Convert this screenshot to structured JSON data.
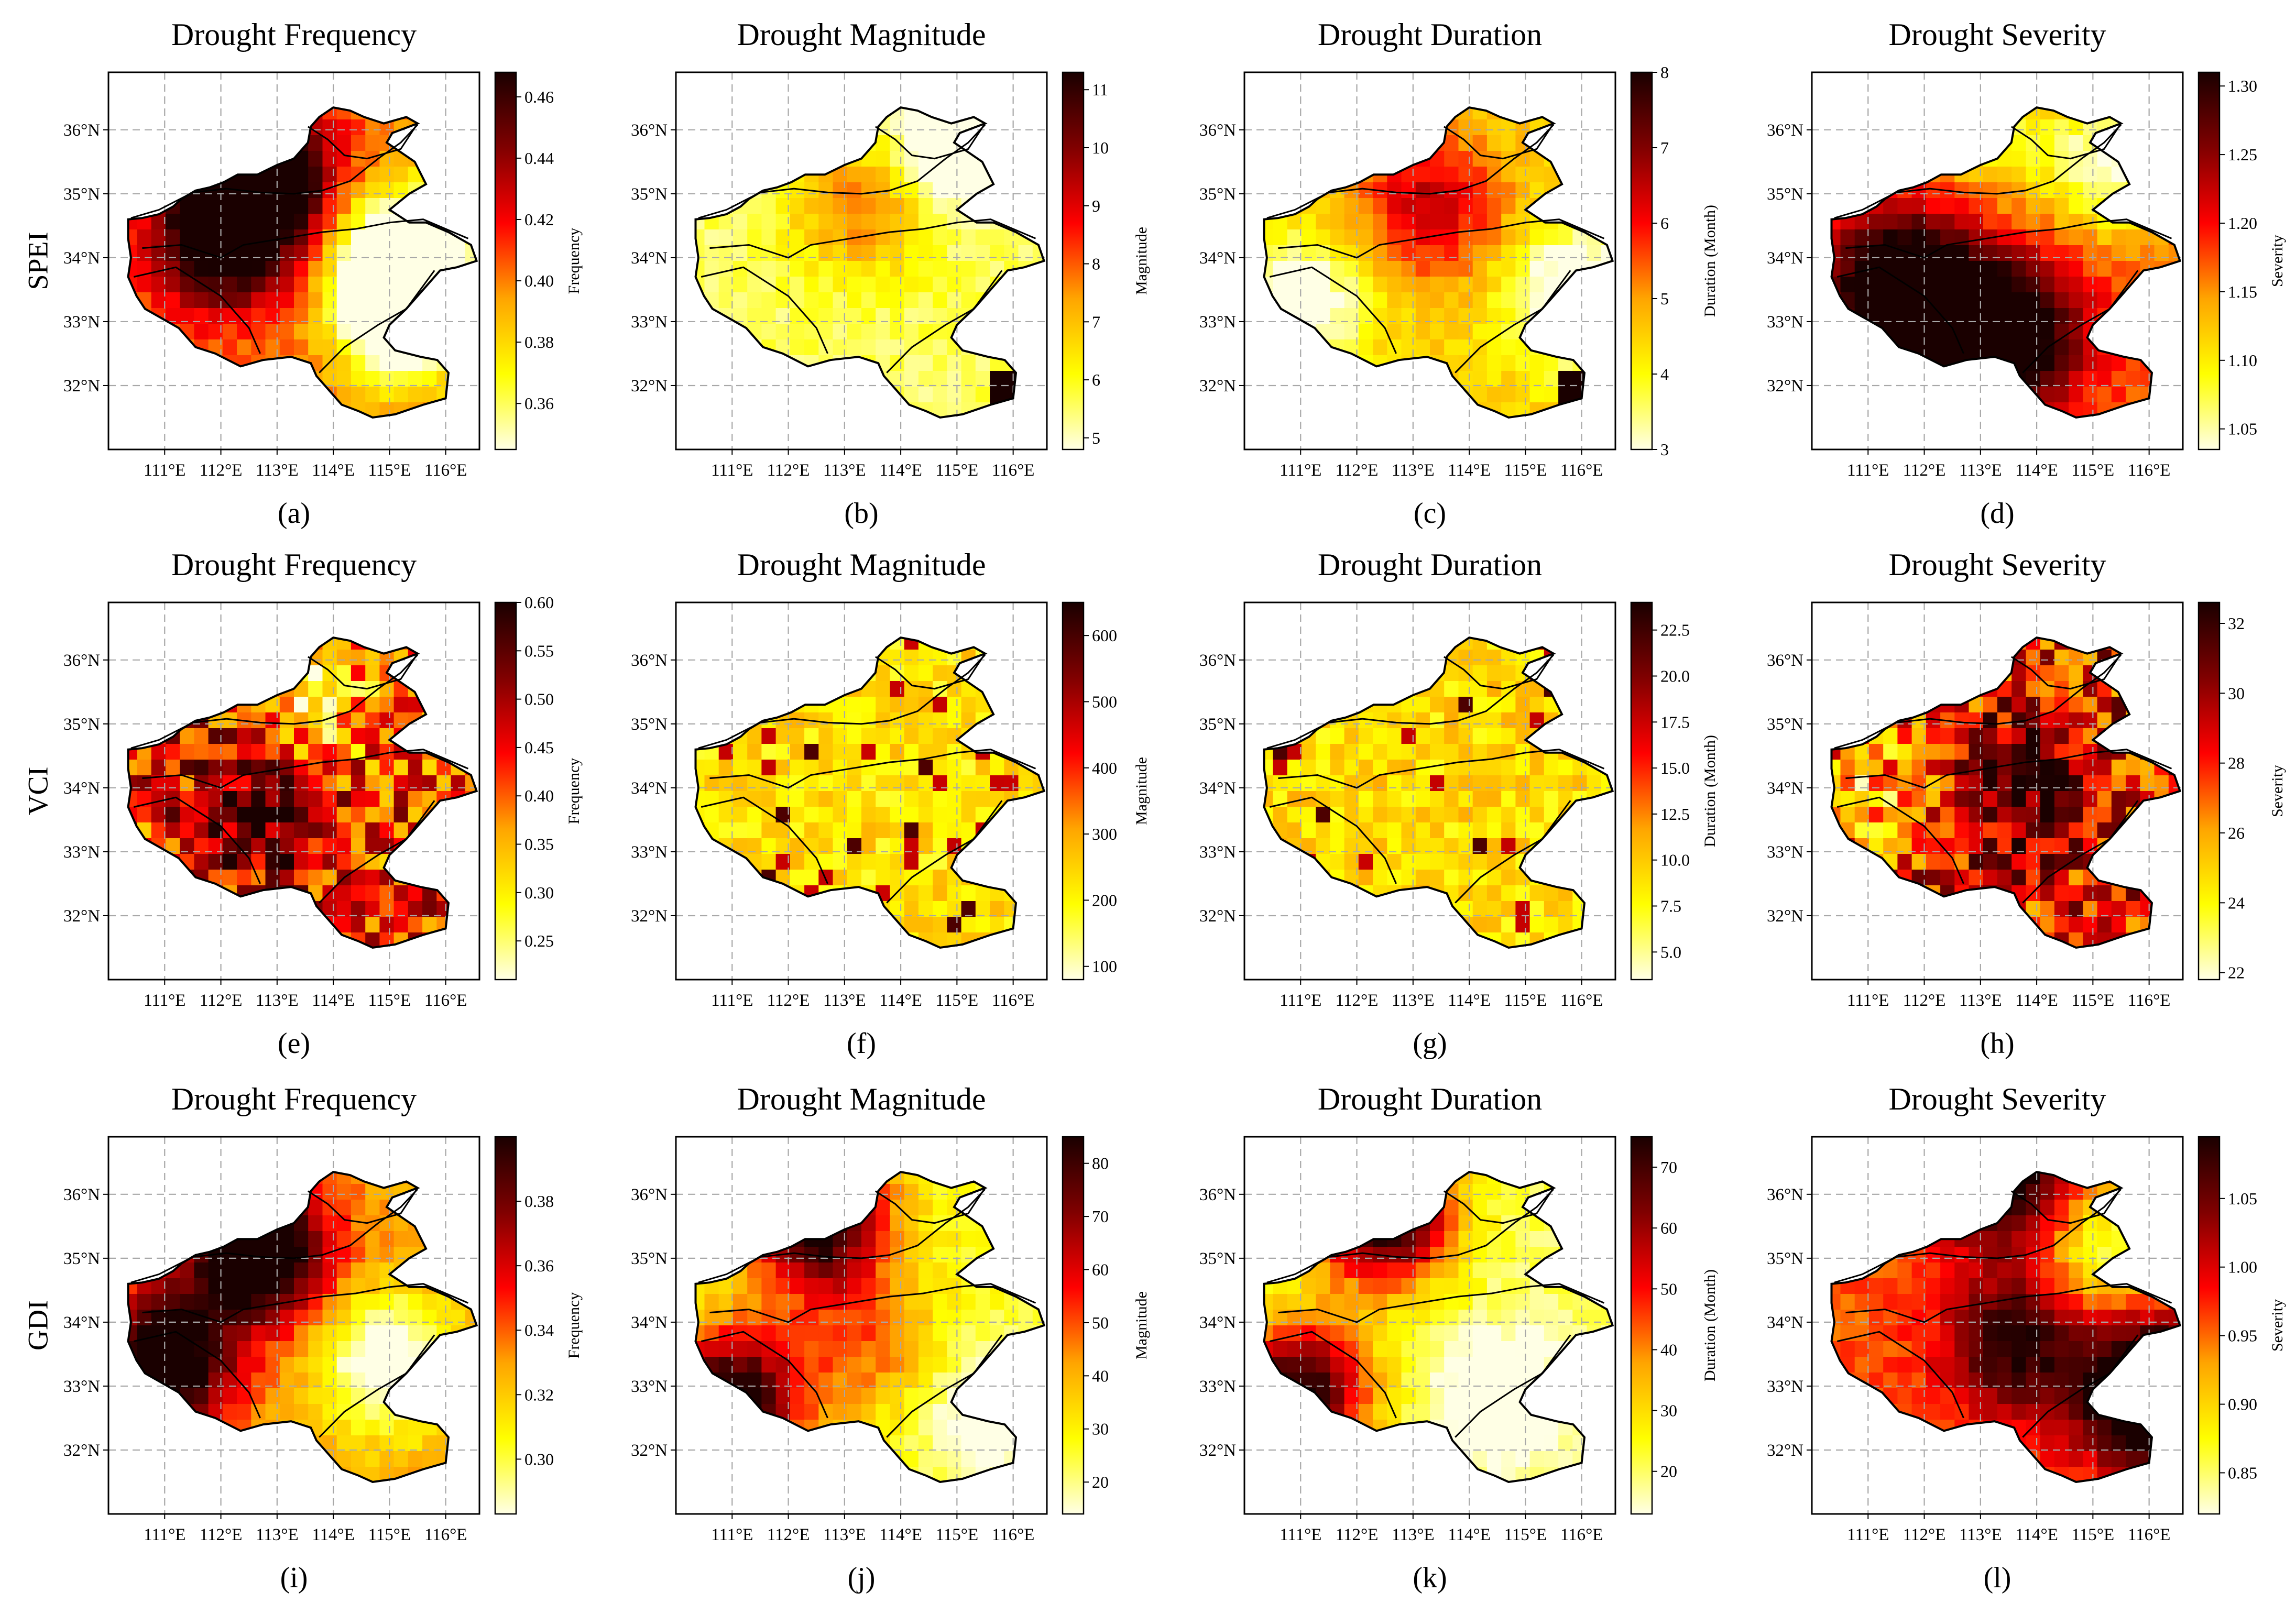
{
  "figure": {
    "row_labels": [
      "SPEI",
      "VCI",
      "GDI"
    ],
    "panel_letters": [
      "(a)",
      "(b)",
      "(c)",
      "(d)",
      "(e)",
      "(f)",
      "(g)",
      "(h)",
      "(i)",
      "(j)",
      "(k)",
      "(l)"
    ],
    "lon_ticks": [
      "111°E",
      "112°E",
      "113°E",
      "114°E",
      "115°E",
      "116°E"
    ],
    "lat_ticks": [
      "36°N",
      "35°N",
      "34°N",
      "33°N",
      "32°N"
    ],
    "colormap": [
      "#ffffe5",
      "#ffff00",
      "#ffa500",
      "#ff0000",
      "#800000",
      "#1a0000"
    ],
    "panels": [
      {
        "letter": "(a)",
        "row": "SPEI",
        "title": "Drought Frequency",
        "cbar_label": "Frequency",
        "range": [
          0.345,
          0.468
        ],
        "ticks": [
          "0.36",
          "0.38",
          "0.40",
          "0.42",
          "0.44",
          "0.46"
        ],
        "tick_values": [
          0.36,
          0.38,
          0.4,
          0.42,
          0.44,
          0.46
        ],
        "style": "smooth",
        "seed": 11,
        "hot": [
          [
            0.27,
            0.4,
            0.9
          ],
          [
            0.45,
            0.3,
            0.6
          ]
        ],
        "low": [
          [
            0.63,
            0.8,
            0.9
          ],
          [
            0.47,
            0.8,
            0.6
          ]
        ]
      },
      {
        "letter": "(b)",
        "row": "SPEI",
        "title": "Drought Magnitude",
        "cbar_label": "Magnitude",
        "range": [
          4.8,
          11.3
        ],
        "ticks": [
          "5",
          "6",
          "7",
          "8",
          "9",
          "10",
          "11"
        ],
        "tick_values": [
          5,
          6,
          7,
          8,
          9,
          10,
          11
        ],
        "style": "smooth",
        "seed": 23,
        "base": 0.12,
        "hot": [
          [
            0.35,
            0.5,
            0.35
          ]
        ],
        "low": [
          [
            0.18,
            0.76,
            0.4
          ]
        ],
        "patch": [
          0.79,
          0.92,
          0.86,
          1.0,
          1.0
        ]
      },
      {
        "letter": "(c)",
        "row": "SPEI",
        "title": "Drought Duration",
        "cbar_label": "Duration (Month)",
        "range": [
          3,
          8
        ],
        "ticks": [
          "3",
          "4",
          "5",
          "6",
          "7",
          "8"
        ],
        "tick_values": [
          3,
          4,
          5,
          6,
          7,
          8
        ],
        "style": "smooth",
        "seed": 37,
        "base": 0.3,
        "hot": [
          [
            0.35,
            0.5,
            0.4
          ]
        ],
        "low": [
          [
            0.6,
            0.9,
            0.5
          ],
          [
            0.62,
            0.15,
            0.4
          ]
        ],
        "patch": [
          0.79,
          0.92,
          0.86,
          1.0,
          1.0
        ]
      },
      {
        "letter": "(d)",
        "row": "SPEI",
        "title": "Drought Severity",
        "cbar_label": "Severity",
        "range": [
          1.035,
          1.31
        ],
        "ticks": [
          "1.05",
          "1.10",
          "1.15",
          "1.20",
          "1.25",
          "1.30"
        ],
        "tick_values": [
          1.05,
          1.1,
          1.15,
          1.2,
          1.25,
          1.3
        ],
        "style": "smooth",
        "seed": 41,
        "base": 0.5,
        "hot": [
          [
            0.58,
            0.25,
            0.9
          ],
          [
            0.7,
            0.52,
            0.8
          ]
        ],
        "low": [
          [
            0.25,
            0.8,
            0.5
          ],
          [
            0.15,
            0.5,
            0.3
          ]
        ]
      },
      {
        "letter": "(e)",
        "row": "VCI",
        "title": "Drought Frequency",
        "cbar_label": "Frequency",
        "range": [
          0.21,
          0.6
        ],
        "ticks": [
          "0.25",
          "0.30",
          "0.35",
          "0.40",
          "0.45",
          "0.50",
          "0.55",
          "0.60"
        ],
        "tick_values": [
          0.25,
          0.3,
          0.35,
          0.4,
          0.45,
          0.5,
          0.55,
          0.6
        ],
        "style": "noisy",
        "seed": 53,
        "base": 0.55,
        "hot": [
          [
            0.55,
            0.4,
            0.4
          ]
        ],
        "low": [
          [
            0.25,
            0.55,
            0.4
          ]
        ]
      },
      {
        "letter": "(f)",
        "row": "VCI",
        "title": "Drought Magnitude",
        "cbar_label": "Magnitude",
        "range": [
          80,
          650
        ],
        "ticks": [
          "100",
          "200",
          "300",
          "400",
          "500",
          "600"
        ],
        "tick_values": [
          100,
          200,
          300,
          400,
          500,
          600
        ],
        "style": "sparse",
        "seed": 61,
        "base": 0.15,
        "hot": [],
        "low": []
      },
      {
        "letter": "(g)",
        "row": "VCI",
        "title": "Drought Duration",
        "cbar_label": "Duration (Month)",
        "range": [
          3.5,
          24
        ],
        "ticks": [
          "5.0",
          "7.5",
          "10.0",
          "12.5",
          "15.0",
          "17.5",
          "20.0",
          "22.5"
        ],
        "tick_values": [
          5,
          7.5,
          10,
          12.5,
          15,
          17.5,
          20,
          22.5
        ],
        "style": "sparse",
        "seed": 71,
        "base": 0.17,
        "hot": [],
        "low": []
      },
      {
        "letter": "(h)",
        "row": "VCI",
        "title": "Drought Severity",
        "cbar_label": "Severity",
        "range": [
          21.8,
          32.6
        ],
        "ticks": [
          "22",
          "24",
          "26",
          "28",
          "30",
          "32"
        ],
        "tick_values": [
          22,
          24,
          26,
          28,
          30,
          32
        ],
        "style": "noisy",
        "seed": 83,
        "base": 0.6,
        "hot": [
          [
            0.5,
            0.55,
            0.3
          ]
        ],
        "low": [
          [
            0.5,
            0.15,
            0.3
          ]
        ]
      },
      {
        "letter": "(i)",
        "row": "GDI",
        "title": "Drought Frequency",
        "cbar_label": "Frequency",
        "range": [
          0.283,
          0.4
        ],
        "ticks": [
          "0.30",
          "0.32",
          "0.34",
          "0.36",
          "0.38"
        ],
        "tick_values": [
          0.3,
          0.32,
          0.34,
          0.36,
          0.38
        ],
        "style": "smooth",
        "seed": 97,
        "base": 0.38,
        "hot": [
          [
            0.3,
            0.4,
            0.9
          ],
          [
            0.6,
            0.15,
            0.8
          ]
        ],
        "low": [
          [
            0.6,
            0.75,
            0.5
          ]
        ]
      },
      {
        "letter": "(j)",
        "row": "GDI",
        "title": "Drought Magnitude",
        "cbar_label": "Magnitude",
        "range": [
          14,
          85
        ],
        "ticks": [
          "20",
          "30",
          "40",
          "50",
          "60",
          "70",
          "80"
        ],
        "tick_values": [
          20,
          30,
          40,
          50,
          60,
          70,
          80
        ],
        "style": "smooth",
        "seed": 101,
        "base": 0.18,
        "hot": [
          [
            0.22,
            0.38,
            0.9
          ],
          [
            0.7,
            0.15,
            0.9
          ],
          [
            0.55,
            0.5,
            0.3
          ]
        ],
        "low": [
          [
            0.75,
            0.85,
            0.3
          ]
        ]
      },
      {
        "letter": "(k)",
        "row": "GDI",
        "title": "Drought Duration",
        "cbar_label": "Duration (Month)",
        "range": [
          13,
          75
        ],
        "ticks": [
          "20",
          "30",
          "40",
          "50",
          "60",
          "70"
        ],
        "tick_values": [
          20,
          30,
          40,
          50,
          60,
          70
        ],
        "style": "smooth",
        "seed": 113,
        "base": 0.12,
        "hot": [
          [
            0.2,
            0.37,
            1.0
          ],
          [
            0.68,
            0.15,
            0.9
          ]
        ],
        "low": [
          [
            0.7,
            0.7,
            0.3
          ]
        ]
      },
      {
        "letter": "(l)",
        "row": "GDI",
        "title": "Drought Severity",
        "cbar_label": "Severity",
        "range": [
          0.82,
          1.095
        ],
        "ticks": [
          "0.85",
          "0.90",
          "0.95",
          "1.00",
          "1.05"
        ],
        "tick_values": [
          0.85,
          0.9,
          0.95,
          1.0,
          1.05
        ],
        "style": "smooth",
        "seed": 127,
        "base": 0.5,
        "hot": [
          [
            0.1,
            0.52,
            0.6
          ],
          [
            0.55,
            0.55,
            0.5
          ],
          [
            0.68,
            0.92,
            0.9
          ]
        ],
        "low": [
          [
            0.3,
            0.8,
            0.4
          ]
        ]
      }
    ]
  },
  "chart_data": [
    {
      "type": "heatmap",
      "panel": "(a)",
      "index": "SPEI",
      "title": "Drought Frequency",
      "colorbar_label": "Frequency",
      "value_range": [
        0.345,
        0.468
      ],
      "xlim_lon": [
        110.0,
        116.6
      ],
      "ylim_lat": [
        31.0,
        36.9
      ]
    },
    {
      "type": "heatmap",
      "panel": "(b)",
      "index": "SPEI",
      "title": "Drought Magnitude",
      "colorbar_label": "Magnitude",
      "value_range": [
        4.8,
        11.3
      ],
      "xlim_lon": [
        110.0,
        116.6
      ],
      "ylim_lat": [
        31.0,
        36.9
      ]
    },
    {
      "type": "heatmap",
      "panel": "(c)",
      "index": "SPEI",
      "title": "Drought Duration",
      "colorbar_label": "Duration (Month)",
      "value_range": [
        3,
        8
      ],
      "xlim_lon": [
        110.0,
        116.6
      ],
      "ylim_lat": [
        31.0,
        36.9
      ]
    },
    {
      "type": "heatmap",
      "panel": "(d)",
      "index": "SPEI",
      "title": "Drought Severity",
      "colorbar_label": "Severity",
      "value_range": [
        1.035,
        1.31
      ],
      "xlim_lon": [
        110.0,
        116.6
      ],
      "ylim_lat": [
        31.0,
        36.9
      ]
    },
    {
      "type": "heatmap",
      "panel": "(e)",
      "index": "VCI",
      "title": "Drought Frequency",
      "colorbar_label": "Frequency",
      "value_range": [
        0.21,
        0.6
      ],
      "xlim_lon": [
        110.0,
        116.6
      ],
      "ylim_lat": [
        31.0,
        36.9
      ]
    },
    {
      "type": "heatmap",
      "panel": "(f)",
      "index": "VCI",
      "title": "Drought Magnitude",
      "colorbar_label": "Magnitude",
      "value_range": [
        80,
        650
      ],
      "xlim_lon": [
        110.0,
        116.6
      ],
      "ylim_lat": [
        31.0,
        36.9
      ]
    },
    {
      "type": "heatmap",
      "panel": "(g)",
      "index": "VCI",
      "title": "Drought Duration",
      "colorbar_label": "Duration (Month)",
      "value_range": [
        3.5,
        24
      ],
      "xlim_lon": [
        110.0,
        116.6
      ],
      "ylim_lat": [
        31.0,
        36.9
      ]
    },
    {
      "type": "heatmap",
      "panel": "(h)",
      "index": "VCI",
      "title": "Drought Severity",
      "colorbar_label": "Severity",
      "value_range": [
        21.8,
        32.6
      ],
      "xlim_lon": [
        110.0,
        116.6
      ],
      "ylim_lat": [
        31.0,
        36.9
      ]
    },
    {
      "type": "heatmap",
      "panel": "(i)",
      "index": "GDI",
      "title": "Drought Frequency",
      "colorbar_label": "Frequency",
      "value_range": [
        0.283,
        0.4
      ],
      "xlim_lon": [
        110.0,
        116.6
      ],
      "ylim_lat": [
        31.0,
        36.9
      ]
    },
    {
      "type": "heatmap",
      "panel": "(j)",
      "index": "GDI",
      "title": "Drought Magnitude",
      "colorbar_label": "Magnitude",
      "value_range": [
        14,
        85
      ],
      "xlim_lon": [
        110.0,
        116.6
      ],
      "ylim_lat": [
        31.0,
        36.9
      ]
    },
    {
      "type": "heatmap",
      "panel": "(k)",
      "index": "GDI",
      "title": "Drought Duration",
      "colorbar_label": "Duration (Month)",
      "value_range": [
        13,
        75
      ],
      "xlim_lon": [
        110.0,
        116.6
      ],
      "ylim_lat": [
        31.0,
        36.9
      ]
    },
    {
      "type": "heatmap",
      "panel": "(l)",
      "index": "GDI",
      "title": "Drought Severity",
      "colorbar_label": "Severity",
      "value_range": [
        0.82,
        1.095
      ],
      "xlim_lon": [
        110.0,
        116.6
      ],
      "ylim_lat": [
        31.0,
        36.9
      ]
    }
  ]
}
